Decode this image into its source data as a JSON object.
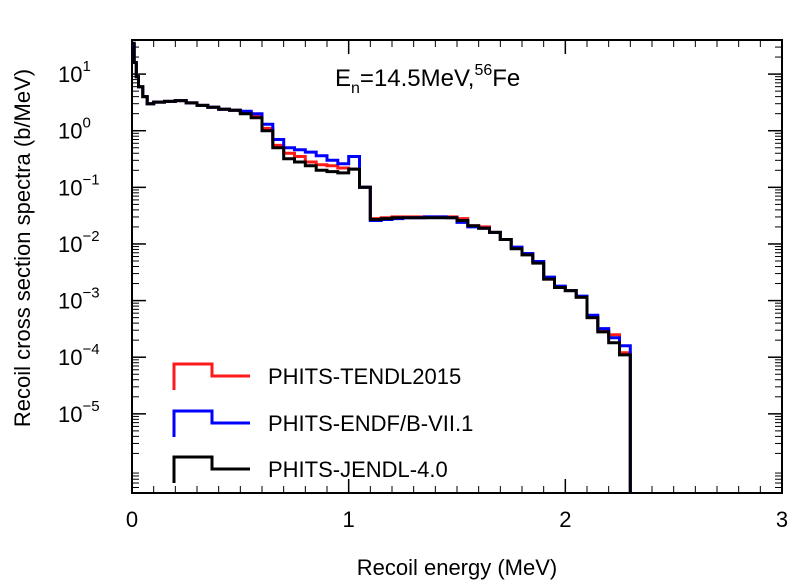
{
  "chart_data": {
    "type": "line",
    "step": true,
    "annotation": {
      "base": "E",
      "sub": "n",
      "mid": "=14.5MeV,",
      "sup": "56",
      "tail": "Fe"
    },
    "xlabel": "Recoil energy (MeV)",
    "ylabel": "Recoil cross section spectra (b/MeV)",
    "xlim": [
      0,
      3
    ],
    "ylim": [
      4e-07,
      40
    ],
    "yscale": "log",
    "x_ticks": [
      {
        "value": 0,
        "label": "0"
      },
      {
        "value": 1,
        "label": "1"
      },
      {
        "value": 2,
        "label": "2"
      },
      {
        "value": 3,
        "label": "3"
      }
    ],
    "y_ticks": [
      {
        "value": 10,
        "base": "10",
        "exp": "1"
      },
      {
        "value": 1,
        "base": "10",
        "exp": "0"
      },
      {
        "value": 0.1,
        "base": "10",
        "exp": "−1"
      },
      {
        "value": 0.01,
        "base": "10",
        "exp": "−2"
      },
      {
        "value": 0.001,
        "base": "10",
        "exp": "−3"
      },
      {
        "value": 0.0001,
        "base": "10",
        "exp": "−4"
      },
      {
        "value": 1e-05,
        "base": "10",
        "exp": "−5"
      }
    ],
    "legend_position": "bottom-left",
    "series": [
      {
        "name": "PHITS-TENDL2015",
        "color": "#ff1a1a",
        "x": [
          0,
          0.01,
          0.02,
          0.03,
          0.05,
          0.07,
          0.1,
          0.15,
          0.2,
          0.25,
          0.3,
          0.35,
          0.4,
          0.45,
          0.5,
          0.55,
          0.6,
          0.65,
          0.7,
          0.75,
          0.8,
          0.85,
          0.9,
          0.95,
          1.0,
          1.05,
          1.1,
          1.15,
          1.2,
          1.25,
          1.3,
          1.35,
          1.4,
          1.45,
          1.5,
          1.55,
          1.6,
          1.65,
          1.7,
          1.75,
          1.8,
          1.85,
          1.9,
          1.95,
          2.0,
          2.05,
          2.1,
          2.15,
          2.2,
          2.25,
          2.3
        ],
        "y": [
          33,
          16,
          9,
          6,
          4,
          3,
          3.2,
          3.3,
          3.4,
          3.1,
          2.8,
          2.6,
          2.4,
          2.3,
          2.1,
          1.8,
          1.1,
          0.55,
          0.4,
          0.35,
          0.28,
          0.25,
          0.24,
          0.22,
          0.21,
          0.1,
          0.028,
          0.029,
          0.03,
          0.03,
          0.03,
          0.03,
          0.03,
          0.03,
          0.028,
          0.021,
          0.02,
          0.016,
          0.012,
          0.0085,
          0.0065,
          0.0048,
          0.0024,
          0.0017,
          0.0015,
          0.00115,
          0.0005,
          0.00029,
          0.00025,
          0.00012,
          1e-07
        ]
      },
      {
        "name": "PHITS-ENDF/B-VII.1",
        "color": "#0000ff",
        "x": [
          0,
          0.01,
          0.02,
          0.03,
          0.05,
          0.07,
          0.1,
          0.15,
          0.2,
          0.25,
          0.3,
          0.35,
          0.4,
          0.45,
          0.5,
          0.55,
          0.6,
          0.65,
          0.7,
          0.75,
          0.8,
          0.85,
          0.9,
          0.95,
          1.0,
          1.05,
          1.1,
          1.15,
          1.2,
          1.25,
          1.3,
          1.35,
          1.4,
          1.45,
          1.5,
          1.55,
          1.6,
          1.65,
          1.7,
          1.75,
          1.8,
          1.85,
          1.9,
          1.95,
          2.0,
          2.05,
          2.1,
          2.15,
          2.2,
          2.25,
          2.3
        ],
        "y": [
          33,
          16,
          9,
          6,
          4,
          3,
          3.2,
          3.3,
          3.4,
          3.1,
          2.8,
          2.6,
          2.4,
          2.3,
          2.2,
          2.0,
          1.3,
          0.7,
          0.5,
          0.46,
          0.42,
          0.36,
          0.3,
          0.26,
          0.35,
          0.1,
          0.026,
          0.027,
          0.028,
          0.029,
          0.029,
          0.03,
          0.03,
          0.029,
          0.024,
          0.02,
          0.019,
          0.016,
          0.012,
          0.0088,
          0.0068,
          0.0049,
          0.0026,
          0.0018,
          0.0015,
          0.0012,
          0.00055,
          0.00032,
          0.00022,
          0.00016,
          1e-07
        ]
      },
      {
        "name": "PHITS-JENDL-4.0",
        "color": "#000000",
        "x": [
          0,
          0.01,
          0.02,
          0.03,
          0.05,
          0.07,
          0.1,
          0.15,
          0.2,
          0.25,
          0.3,
          0.35,
          0.4,
          0.45,
          0.5,
          0.55,
          0.6,
          0.65,
          0.7,
          0.75,
          0.8,
          0.85,
          0.9,
          0.95,
          1.0,
          1.05,
          1.1,
          1.15,
          1.2,
          1.25,
          1.3,
          1.35,
          1.4,
          1.45,
          1.5,
          1.55,
          1.6,
          1.65,
          1.7,
          1.75,
          1.8,
          1.85,
          1.9,
          1.95,
          2.0,
          2.05,
          2.1,
          2.15,
          2.2,
          2.25,
          2.3
        ],
        "y": [
          35,
          16,
          9,
          6,
          4,
          3,
          3.2,
          3.3,
          3.4,
          3.1,
          2.8,
          2.6,
          2.4,
          2.3,
          2.0,
          1.7,
          1.0,
          0.5,
          0.32,
          0.28,
          0.24,
          0.2,
          0.19,
          0.18,
          0.21,
          0.1,
          0.027,
          0.028,
          0.029,
          0.029,
          0.029,
          0.029,
          0.029,
          0.029,
          0.026,
          0.021,
          0.019,
          0.016,
          0.012,
          0.0082,
          0.0064,
          0.0046,
          0.0024,
          0.0017,
          0.0015,
          0.00115,
          0.0005,
          0.00028,
          0.00018,
          0.00011,
          1e-07
        ]
      }
    ]
  }
}
